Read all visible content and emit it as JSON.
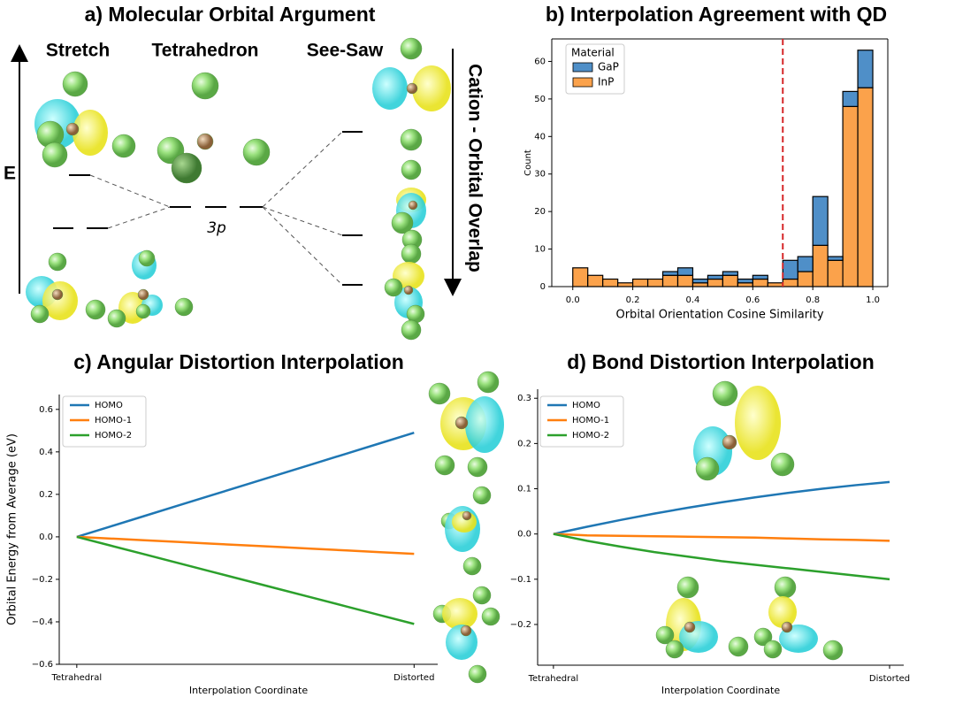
{
  "diagram": {
    "title": "a) Molecular Orbital Argument",
    "columns": [
      "Stretch",
      "Tetrahedron",
      "See-Saw"
    ],
    "energy_label": "E",
    "center_label": "3p",
    "side_label": "Cation - Orbital Overlap"
  },
  "chart_data": [
    {
      "type": "histogram",
      "title": "b) Interpolation Agreement with QD",
      "xlabel": "Orbital Orientation Cosine Similarity",
      "ylabel": "Count",
      "legend_title": "Material",
      "legend": "upper left",
      "bins": [
        0,
        0.05,
        0.1,
        0.15,
        0.2,
        0.25,
        0.3,
        0.35,
        0.4,
        0.45,
        0.5,
        0.55,
        0.6,
        0.65,
        0.7,
        0.75,
        0.8,
        0.85,
        0.9,
        0.95,
        1.0
      ],
      "series": [
        {
          "name": "GaP",
          "color": "#4f8fc8",
          "values": [
            0,
            0,
            0,
            0,
            0,
            0,
            1,
            2,
            1,
            1,
            1,
            1,
            1,
            0,
            5,
            4,
            13,
            1,
            4,
            10
          ]
        },
        {
          "name": "InP",
          "color": "#fba24b",
          "values": [
            5,
            3,
            2,
            1,
            2,
            2,
            3,
            3,
            1,
            2,
            3,
            1,
            2,
            1,
            2,
            4,
            11,
            7,
            48,
            53
          ]
        }
      ],
      "vline": 0.7,
      "vline_color": "#d62728",
      "xlim": [
        -0.07,
        1.05
      ],
      "ylim": [
        0,
        66
      ],
      "xticks": [
        {
          "value": 0,
          "label": "0.0"
        },
        0.2,
        0.4,
        0.6,
        0.8,
        {
          "value": 1,
          "label": "1.0"
        }
      ],
      "yticks": [
        0,
        10,
        20,
        30,
        40,
        50,
        60
      ]
    },
    {
      "type": "line",
      "title": "c) Angular Distortion Interpolation",
      "xlabel": "Interpolation Coordinate",
      "ylabel": "Orbital Energy from Average (eV)",
      "legend": "upper left",
      "x": [
        0,
        0.1,
        0.2,
        0.3,
        0.4,
        0.5,
        0.6,
        0.7,
        0.8,
        0.9,
        1.0
      ],
      "series": [
        {
          "name": "HOMO",
          "color": "#1f77b4",
          "values": [
            0,
            0.049,
            0.098,
            0.147,
            0.196,
            0.245,
            0.294,
            0.343,
            0.392,
            0.441,
            0.49
          ]
        },
        {
          "name": "HOMO-1",
          "color": "#ff7f0e",
          "values": [
            0,
            -0.008,
            -0.016,
            -0.024,
            -0.032,
            -0.04,
            -0.048,
            -0.056,
            -0.064,
            -0.072,
            -0.08
          ]
        },
        {
          "name": "HOMO-2",
          "color": "#2ca02c",
          "values": [
            0,
            -0.041,
            -0.082,
            -0.123,
            -0.164,
            -0.205,
            -0.246,
            -0.287,
            -0.328,
            -0.369,
            -0.41
          ]
        }
      ],
      "xlim": [
        -0.052,
        1.07
      ],
      "ylim": [
        -0.6,
        0.67
      ],
      "xticks": [
        {
          "value": 0,
          "label": "Tetrahedral"
        },
        {
          "value": 1,
          "label": "Distorted"
        }
      ],
      "yticks": [
        {
          "value": -0.6,
          "label": "−0.6"
        },
        {
          "value": -0.4,
          "label": "−0.4"
        },
        {
          "value": -0.2,
          "label": "−0.2"
        },
        {
          "value": 0,
          "label": "0.0"
        },
        0.2,
        0.4,
        0.6
      ]
    },
    {
      "type": "line",
      "title": "d) Bond Distortion Interpolation",
      "xlabel": "Interpolation Coordinate",
      "legend": "upper left",
      "x": [
        0,
        0.1,
        0.2,
        0.3,
        0.4,
        0.5,
        0.6,
        0.7,
        0.8,
        0.9,
        1.0
      ],
      "series": [
        {
          "name": "HOMO",
          "color": "#1f77b4",
          "values": [
            0,
            0.016,
            0.031,
            0.045,
            0.058,
            0.07,
            0.081,
            0.091,
            0.1,
            0.108,
            0.115
          ]
        },
        {
          "name": "HOMO-1",
          "color": "#ff7f0e",
          "values": [
            0,
            -0.003,
            -0.004,
            -0.005,
            -0.006,
            -0.007,
            -0.008,
            -0.01,
            -0.012,
            -0.013,
            -0.015
          ]
        },
        {
          "name": "HOMO-2",
          "color": "#2ca02c",
          "values": [
            0,
            -0.015,
            -0.028,
            -0.04,
            -0.05,
            -0.06,
            -0.068,
            -0.076,
            -0.084,
            -0.092,
            -0.1
          ]
        }
      ],
      "xlim": [
        -0.047,
        1.042
      ],
      "ylim": [
        -0.29,
        0.32
      ],
      "xticks": [
        {
          "value": 0,
          "label": "Tetrahedral"
        },
        {
          "value": 1,
          "label": "Distorted"
        }
      ],
      "yticks": [
        {
          "value": -0.2,
          "label": "−0.2"
        },
        {
          "value": -0.1,
          "label": "−0.1"
        },
        {
          "value": 0,
          "label": "0.0"
        },
        0.1,
        0.2,
        0.3
      ]
    }
  ]
}
